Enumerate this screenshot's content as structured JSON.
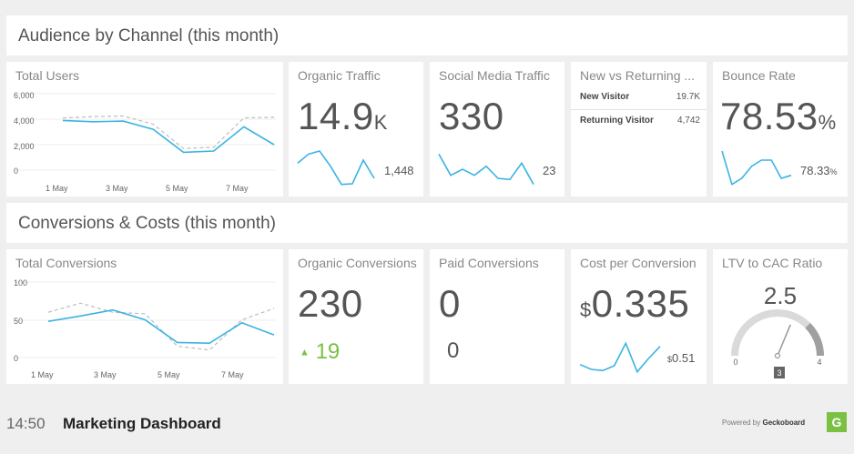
{
  "sections": {
    "audience_title": "Audience by Channel (this month)",
    "conversions_title": "Conversions & Costs (this month)"
  },
  "total_users": {
    "title": "Total Users",
    "y_ticks": [
      "6,000",
      "4,000",
      "2,000",
      "0"
    ],
    "x_ticks": [
      "1 May",
      "3 May",
      "5 May",
      "7 May"
    ]
  },
  "organic_traffic": {
    "title": "Organic Traffic",
    "value": "14.9",
    "unit": "K",
    "secondary": "1,448"
  },
  "social_media_traffic": {
    "title": "Social Media Traffic",
    "value": "330",
    "secondary": "23"
  },
  "new_vs_returning": {
    "title": "New vs Returning ...",
    "rows": [
      {
        "label": "New Visitor",
        "value": "19.7K"
      },
      {
        "label": "Returning Visitor",
        "value": "4,742"
      }
    ]
  },
  "bounce_rate": {
    "title": "Bounce Rate",
    "value": "78.53",
    "unit": "%",
    "secondary": "78.33",
    "secondary_unit": "%"
  },
  "total_conversions": {
    "title": "Total Conversions",
    "y_ticks": [
      "100",
      "50",
      "0"
    ],
    "x_ticks": [
      "1 May",
      "3 May",
      "5 May",
      "7 May"
    ]
  },
  "organic_conversions": {
    "title": "Organic Conversions",
    "value": "230",
    "change_arrow": "▲",
    "change_value": "19"
  },
  "paid_conversions": {
    "title": "Paid Conversions",
    "value": "0",
    "secondary": "0"
  },
  "cost_per_conversion": {
    "title": "Cost per Conversion",
    "currency": "$",
    "value": "0.335",
    "secondary_currency": "$",
    "secondary": "0.51"
  },
  "ltv_cac": {
    "title": "LTV to CAC Ratio",
    "value": "2.5",
    "min": "0",
    "max": "4",
    "target": "3",
    "value_num": 2.5,
    "min_num": 0,
    "max_num": 4,
    "target_num": 3
  },
  "footer": {
    "time": "14:50",
    "title": "Marketing Dashboard",
    "powered_prefix": "Powered by",
    "powered_brand": "Geckoboard",
    "logo_letter": "G"
  },
  "colors": {
    "accent": "#3bb3e3",
    "previous": "#bdbdbd",
    "positive": "#7ac143",
    "logo": "#7ac143"
  },
  "chart_data": [
    {
      "type": "line",
      "title": "Total Users",
      "x": [
        "1 May",
        "2 May",
        "3 May",
        "4 May",
        "5 May",
        "6 May",
        "7 May",
        "8 May"
      ],
      "ylim": [
        0,
        6000
      ],
      "series": [
        {
          "values": [
            3900,
            3800,
            3850,
            3200,
            1400,
            1500,
            3400,
            2000
          ]
        },
        {
          "values": [
            4100,
            4200,
            4250,
            3600,
            1700,
            1800,
            4100,
            4150
          ]
        }
      ]
    },
    {
      "type": "line",
      "title": "Total Conversions",
      "x": [
        "1 May",
        "2 May",
        "3 May",
        "4 May",
        "5 May",
        "6 May",
        "7 May",
        "8 May"
      ],
      "ylim": [
        0,
        100
      ],
      "series": [
        {
          "values": [
            48,
            55,
            63,
            50,
            20,
            19,
            46,
            30
          ]
        },
        {
          "values": [
            60,
            72,
            60,
            58,
            15,
            10,
            50,
            65
          ]
        }
      ]
    },
    {
      "type": "line",
      "title": "Organic Traffic",
      "values": [
        40,
        55,
        60,
        35,
        5,
        6,
        45,
        15
      ]
    },
    {
      "type": "line",
      "title": "Social Media Traffic",
      "values": [
        55,
        20,
        30,
        20,
        35,
        15,
        13,
        40,
        5
      ]
    },
    {
      "type": "line",
      "title": "Bounce Rate",
      "values": [
        60,
        5,
        15,
        35,
        45,
        45,
        15,
        20
      ]
    },
    {
      "type": "line",
      "title": "Cost per Conversion",
      "values": [
        20,
        12,
        10,
        18,
        55,
        8,
        30,
        50
      ]
    }
  ]
}
